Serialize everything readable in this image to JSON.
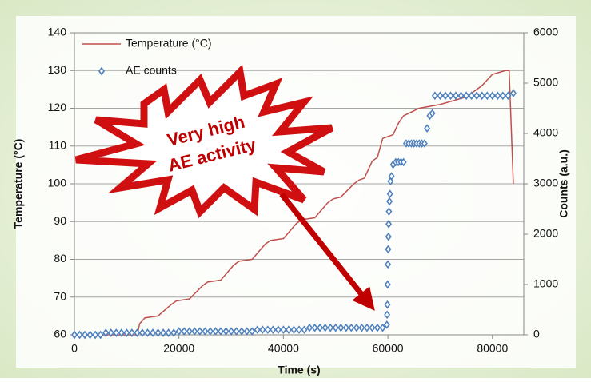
{
  "chart_data": {
    "type": "line-scatter",
    "xlabel": "Time (s)",
    "ylabel": "Temperature (°C)",
    "y2label": "Counts (a.u.)",
    "xlim": [
      0,
      86000
    ],
    "xticks": [
      0,
      20000,
      40000,
      60000,
      80000
    ],
    "ylim": [
      60,
      140
    ],
    "yticks": [
      60,
      70,
      80,
      90,
      100,
      110,
      120,
      130,
      140
    ],
    "y2lim": [
      0,
      6000
    ],
    "y2ticks": [
      0,
      1000,
      2000,
      3000,
      4000,
      5000,
      6000
    ],
    "grid": true,
    "legend": "top-left",
    "annotation": [
      "Very high",
      "AE activity"
    ],
    "series": [
      {
        "name": "Temperature (°C)",
        "color": "#c0504d",
        "kind": "line",
        "x": [
          0,
          12000,
          12500,
          13500,
          16000,
          18500,
          19500,
          22000,
          24500,
          25500,
          28000,
          30500,
          31500,
          34000,
          36500,
          37500,
          40000,
          42500,
          43500,
          46000,
          48500,
          49500,
          51000,
          53500,
          54500,
          55500,
          57000,
          58000,
          59000,
          61000,
          62000,
          63000,
          66000,
          70000,
          75000,
          78000,
          80000,
          82500,
          83200,
          84000
        ],
        "values": [
          60,
          60,
          63,
          64.5,
          65,
          68,
          69,
          69.5,
          73,
          74,
          74.5,
          78.5,
          79.5,
          80,
          84,
          85,
          85.5,
          89.5,
          90.5,
          91,
          95,
          96,
          96.5,
          100,
          101,
          101.5,
          106,
          107,
          112,
          113,
          116,
          118,
          120,
          121,
          123,
          126,
          129,
          130,
          130,
          100
        ]
      },
      {
        "name": "AE counts",
        "color": "#4f81bd",
        "kind": "scatter",
        "axis": "y2",
        "x": [
          0,
          1000,
          2000,
          3000,
          4000,
          5000,
          6000,
          7000,
          8000,
          9000,
          10000,
          11000,
          12000,
          13000,
          14000,
          15000,
          16000,
          17000,
          18000,
          19000,
          20000,
          21000,
          22000,
          23000,
          24000,
          25000,
          26000,
          27000,
          28000,
          29000,
          30000,
          31000,
          32000,
          33000,
          34000,
          35000,
          36000,
          37000,
          38000,
          39000,
          40000,
          41000,
          42000,
          43000,
          44000,
          45000,
          46000,
          47000,
          48000,
          49000,
          50000,
          51000,
          52000,
          53000,
          54000,
          55000,
          56000,
          57000,
          58000,
          59000,
          59800,
          59850,
          59900,
          59950,
          60000,
          60050,
          60100,
          60150,
          60200,
          60300,
          60400,
          60500,
          60700,
          61000,
          61500,
          62000,
          62500,
          63000,
          63500,
          64000,
          64500,
          65000,
          65500,
          66000,
          66500,
          67000,
          67500,
          68000,
          68500,
          69000,
          70000,
          71000,
          72000,
          73000,
          74000,
          75000,
          76000,
          77000,
          78000,
          79000,
          80000,
          81000,
          82000,
          83000,
          84000
        ],
        "values": [
          0,
          0,
          0,
          0,
          0,
          0,
          40,
          40,
          40,
          40,
          40,
          40,
          40,
          40,
          40,
          40,
          40,
          40,
          40,
          40,
          70,
          70,
          70,
          70,
          70,
          70,
          70,
          70,
          70,
          70,
          70,
          70,
          70,
          70,
          70,
          100,
          100,
          100,
          100,
          100,
          100,
          100,
          100,
          100,
          100,
          140,
          140,
          140,
          140,
          140,
          140,
          140,
          140,
          140,
          140,
          140,
          140,
          140,
          140,
          140,
          200,
          400,
          600,
          1000,
          1400,
          1700,
          1950,
          2200,
          2450,
          2650,
          2800,
          3050,
          3150,
          3380,
          3430,
          3430,
          3430,
          3430,
          3800,
          3800,
          3800,
          3800,
          3800,
          3800,
          3800,
          3800,
          4100,
          4350,
          4400,
          4750,
          4750,
          4750,
          4750,
          4750,
          4750,
          4750,
          4750,
          4750,
          4750,
          4750,
          4750,
          4750,
          4750,
          4750,
          4800
        ]
      }
    ]
  }
}
